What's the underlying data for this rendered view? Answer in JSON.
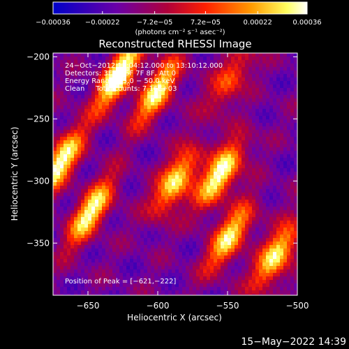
{
  "chart_data": {
    "type": "heatmap",
    "title": "Reconstructed RHESSI Image",
    "xlabel": "Heliocentric X (arcsec)",
    "ylabel": "Heliocentric Y (arcsec)",
    "xlim": [
      -675,
      -500
    ],
    "ylim": [
      -392,
      -197
    ],
    "x_ticks": [
      -650,
      -600,
      -550,
      -500
    ],
    "x_tick_labels": [
      "−650",
      "−600",
      "−550",
      "−500"
    ],
    "y_ticks": [
      -200,
      -250,
      -300,
      -350
    ],
    "y_tick_labels": [
      "−200",
      "−250",
      "−300",
      "−350"
    ],
    "colorbar": {
      "min": -0.00036,
      "max": 0.00036,
      "ticks": [
        -0.00036,
        -0.00022,
        -7.2e-05,
        7.2e-05,
        0.00022,
        0.00036
      ],
      "tick_labels": [
        "−0.00036",
        "−0.00022",
        "−7.2e−05",
        "7.2e−05",
        "0.00022",
        "0.00036"
      ],
      "unit_label": "(photons cm⁻² s⁻¹ asec⁻²)",
      "colormap": [
        "#0000c8",
        "#6a00a8",
        "#b0003a",
        "#ff2000",
        "#ff9a00",
        "#ffff60",
        "#ffffff"
      ]
    },
    "annotations": [
      "24−Oct−2012 13:04:12.000 to 13:10:12.000",
      "Detectors: 3F 5F 6F 7F 8F, Att 0",
      "Energy Range: 25.0 − 50.0 keV",
      "Clean     Total counts: 7.16E+03"
    ],
    "peak_label": "Position of Peak = [−621,−222]",
    "peak_position": [
      -621,
      -222
    ],
    "bright_sources": [
      {
        "x": -670,
        "y": -285,
        "strength": 0.9
      },
      {
        "x": -648,
        "y": -325,
        "strength": 0.85
      },
      {
        "x": -628,
        "y": -215,
        "strength": 1.0
      },
      {
        "x": -600,
        "y": -228,
        "strength": 0.8
      },
      {
        "x": -587,
        "y": -300,
        "strength": 0.85
      },
      {
        "x": -555,
        "y": -295,
        "strength": 0.95
      },
      {
        "x": -548,
        "y": -345,
        "strength": 0.8
      },
      {
        "x": -515,
        "y": -360,
        "strength": 0.85
      },
      {
        "x": -548,
        "y": -218,
        "strength": 0.5
      }
    ]
  },
  "footer": {
    "timestamp": "15−May−2022 14:39"
  }
}
